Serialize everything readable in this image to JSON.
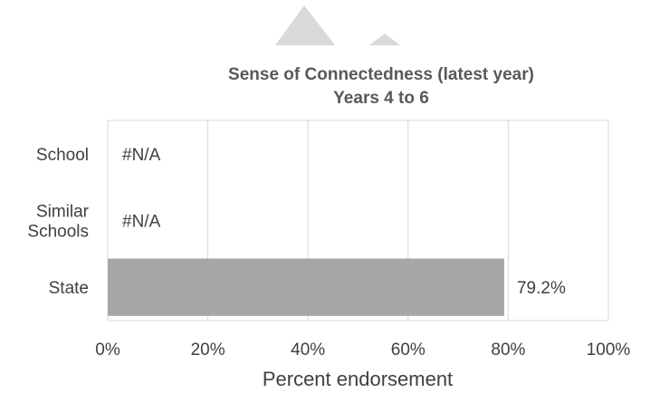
{
  "chart_data": {
    "type": "bar",
    "orientation": "horizontal",
    "title": "Sense of Connectedness (latest year)",
    "subtitle": "Years 4 to 6",
    "xlabel": "Percent endorsement",
    "ylabel": "",
    "xlim": [
      0,
      100
    ],
    "x_ticks": [
      "0%",
      "20%",
      "40%",
      "60%",
      "80%",
      "100%"
    ],
    "grid": true,
    "categories": [
      {
        "lines": [
          "School"
        ],
        "value": null,
        "label": "#N/A"
      },
      {
        "lines": [
          "Similar",
          "Schools"
        ],
        "value": null,
        "label": "#N/A"
      },
      {
        "lines": [
          "State"
        ],
        "value": 79.2,
        "label": "79.2%"
      }
    ],
    "colors": {
      "bar": "#a6a6a6",
      "grid": "#d9d9d9",
      "decoration": "#d9d9d9"
    }
  }
}
